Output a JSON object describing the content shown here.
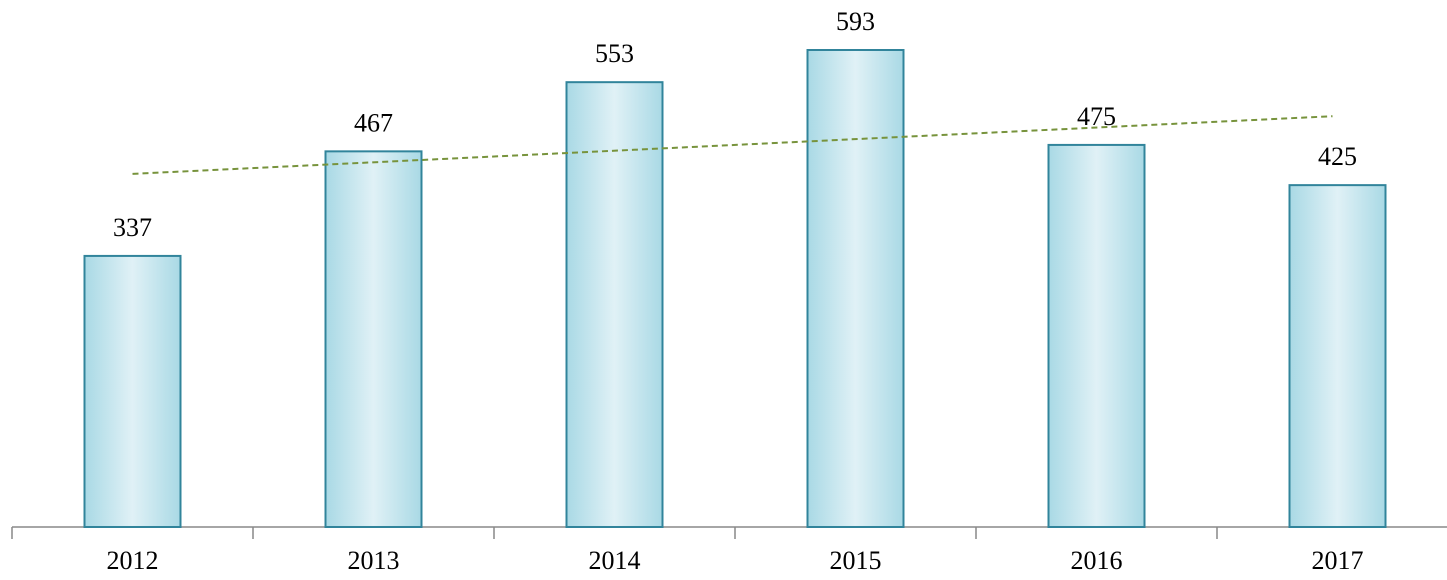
{
  "chart_data": {
    "type": "bar",
    "categories": [
      "2012",
      "2013",
      "2014",
      "2015",
      "2016",
      "2017"
    ],
    "values": [
      337,
      467,
      553,
      593,
      475,
      425
    ],
    "color": "#31849b",
    "trendline": {
      "type": "linear",
      "color": "#77933c"
    }
  }
}
